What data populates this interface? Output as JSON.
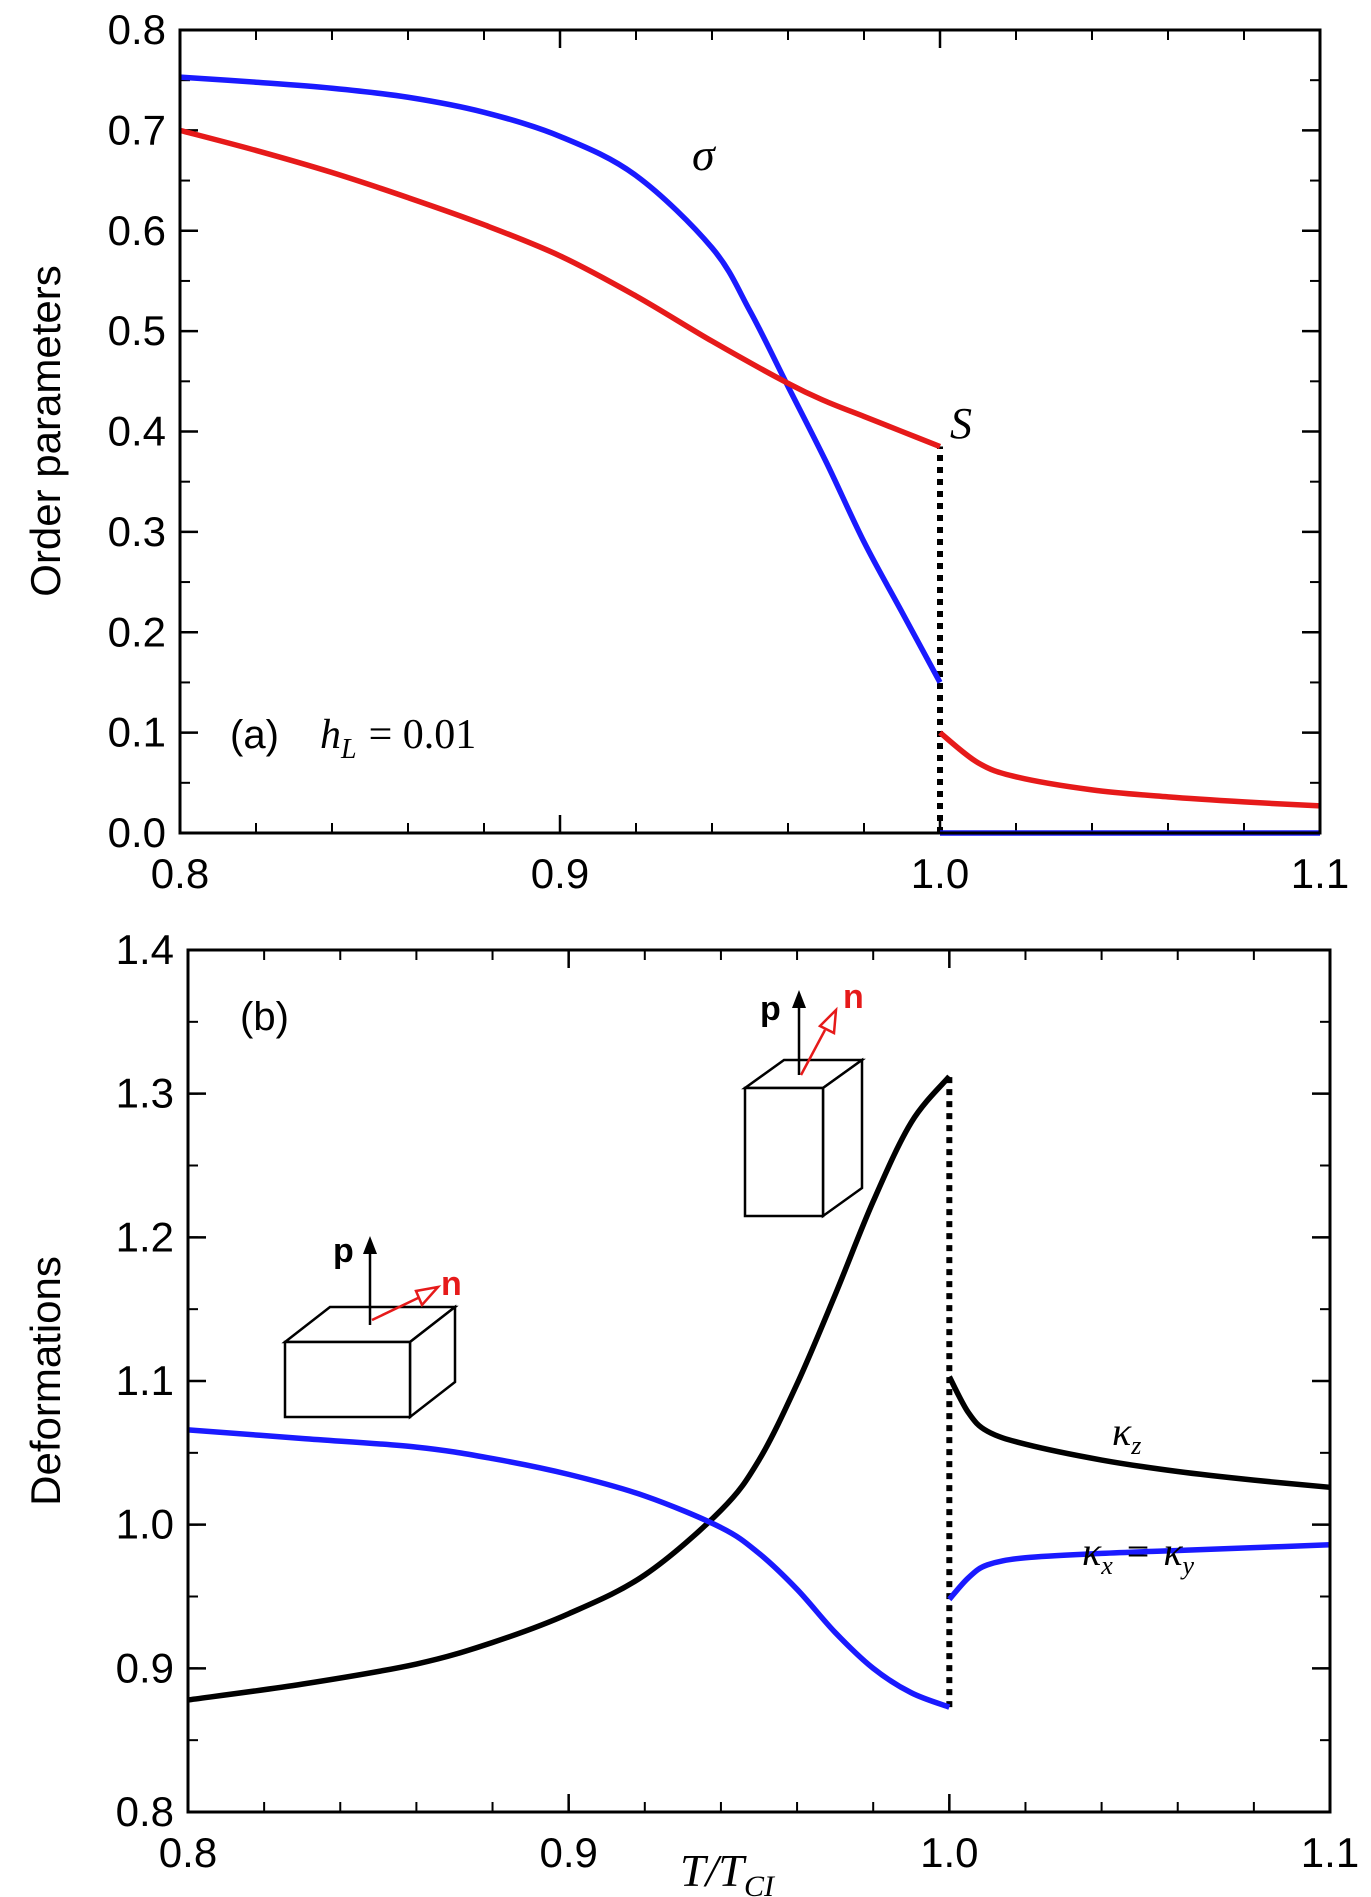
{
  "chart_data": [
    {
      "type": "line",
      "panel_label": "(a)",
      "annotation": "h_L = 0.01",
      "annotation_symbol": "h",
      "annotation_subscript": "L",
      "annotation_value": "= 0.01",
      "xlabel": "",
      "ylabel": "Order parameters",
      "xlim": [
        0.8,
        1.1
      ],
      "ylim": [
        0.0,
        0.8
      ],
      "xticks": [
        "0.8",
        "0.9",
        "1.0",
        "1.1"
      ],
      "yticks": [
        "0.0",
        "0.1",
        "0.2",
        "0.3",
        "0.4",
        "0.5",
        "0.6",
        "0.7",
        "0.8"
      ],
      "transition": {
        "x": 1.0,
        "y_range": [
          0.0,
          0.385
        ],
        "style": "dotted"
      },
      "series": [
        {
          "name": "σ",
          "color": "#1a1aff",
          "segments": [
            {
              "x": [
                0.8,
                0.82,
                0.84,
                0.86,
                0.88,
                0.9,
                0.92,
                0.94,
                0.95,
                0.96,
                0.97,
                0.98,
                0.99,
                1.0
              ],
              "y": [
                0.753,
                0.748,
                0.742,
                0.733,
                0.718,
                0.694,
                0.655,
                0.583,
                0.52,
                0.445,
                0.37,
                0.29,
                0.22,
                0.15
              ]
            },
            {
              "x": [
                1.0,
                1.05,
                1.1
              ],
              "y": [
                0.0,
                0.0,
                0.0
              ]
            }
          ]
        },
        {
          "name": "S",
          "color": "#e61a1a",
          "segments": [
            {
              "x": [
                0.8,
                0.82,
                0.84,
                0.86,
                0.88,
                0.9,
                0.92,
                0.94,
                0.96,
                0.97,
                0.98,
                0.99,
                1.0
              ],
              "y": [
                0.7,
                0.68,
                0.658,
                0.633,
                0.606,
                0.575,
                0.535,
                0.49,
                0.448,
                0.43,
                0.415,
                0.4,
                0.385
              ]
            },
            {
              "x": [
                1.0,
                1.01,
                1.02,
                1.04,
                1.06,
                1.08,
                1.1
              ],
              "y": [
                0.1,
                0.07,
                0.056,
                0.043,
                0.036,
                0.031,
                0.027
              ]
            }
          ]
        }
      ]
    },
    {
      "type": "line",
      "panel_label": "(b)",
      "xlabel": "T/T_CI",
      "xlabel_main": "T/T",
      "xlabel_sub": "CI",
      "ylabel": "Deformations",
      "xlim": [
        0.8,
        1.1
      ],
      "ylim": [
        0.8,
        1.4
      ],
      "xticks": [
        "0.8",
        "0.9",
        "1.0",
        "1.1"
      ],
      "yticks": [
        "0.8",
        "0.9",
        "1.0",
        "1.1",
        "1.2",
        "1.3",
        "1.4"
      ],
      "transition": {
        "x": 1.0,
        "y_range": [
          0.873,
          1.312
        ],
        "style": "dotted"
      },
      "vector_labels": {
        "p": "p",
        "n": "n"
      },
      "series": [
        {
          "name": "κ_z",
          "label_symbol": "κ",
          "label_sub": "z",
          "color": "#000000",
          "segments": [
            {
              "x": [
                0.8,
                0.83,
                0.86,
                0.88,
                0.9,
                0.92,
                0.94,
                0.95,
                0.96,
                0.97,
                0.98,
                0.99,
                1.0
              ],
              "y": [
                0.878,
                0.889,
                0.903,
                0.918,
                0.938,
                0.965,
                1.01,
                1.045,
                1.098,
                1.16,
                1.225,
                1.28,
                1.312
              ]
            },
            {
              "x": [
                1.0,
                1.005,
                1.01,
                1.02,
                1.04,
                1.06,
                1.08,
                1.1
              ],
              "y": [
                1.103,
                1.078,
                1.065,
                1.056,
                1.045,
                1.037,
                1.031,
                1.026
              ]
            }
          ]
        },
        {
          "name": "κ_x = κ_y",
          "label_symbol_1": "κ",
          "label_sub_1": "x",
          "label_equals": "=",
          "label_symbol_2": "κ",
          "label_sub_2": "y",
          "color": "#1a1aff",
          "segments": [
            {
              "x": [
                0.8,
                0.83,
                0.86,
                0.88,
                0.9,
                0.92,
                0.94,
                0.95,
                0.96,
                0.97,
                0.98,
                0.99,
                1.0
              ],
              "y": [
                1.066,
                1.06,
                1.054,
                1.046,
                1.035,
                1.02,
                0.998,
                0.98,
                0.955,
                0.925,
                0.9,
                0.883,
                0.873
              ]
            },
            {
              "x": [
                1.0,
                1.005,
                1.01,
                1.02,
                1.04,
                1.06,
                1.08,
                1.1
              ],
              "y": [
                0.948,
                0.963,
                0.972,
                0.977,
                0.98,
                0.982,
                0.984,
                0.986
              ]
            }
          ]
        }
      ]
    }
  ]
}
